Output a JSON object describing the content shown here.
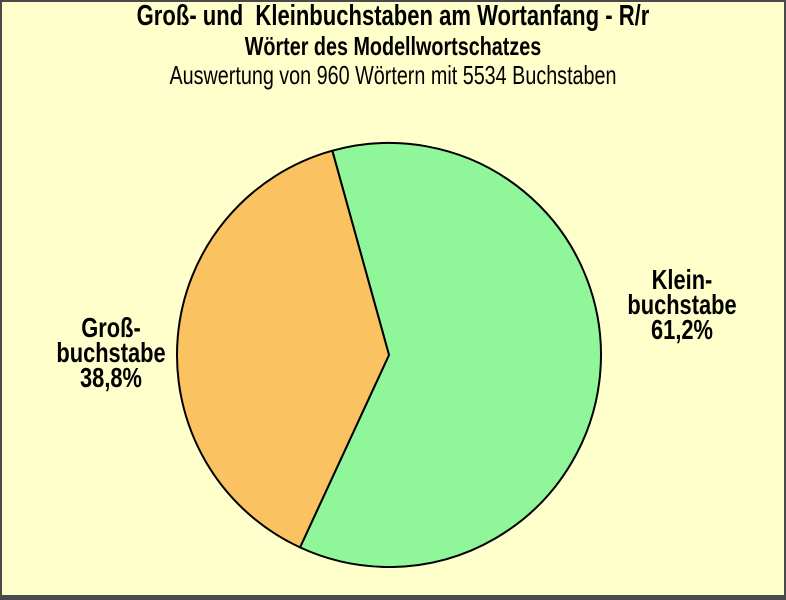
{
  "window": {
    "background": "#FFFFCC",
    "border_color": "#4A4A4A"
  },
  "header": {
    "title": "Groß- und  Kleinbuchstaben am Wortanfang - R/r",
    "subtitle": "Wörter des Modellwortschatzes",
    "annotation": "Auswertung von 960 Wörtern mit 5534 Buchstaben"
  },
  "chart_data": {
    "type": "pie",
    "title": "Groß- und  Kleinbuchstaben am Wortanfang - R/r",
    "subtitle": "Wörter des Modellwortschatzes",
    "annotation": "Auswertung von 960 Wörtern mit 5534 Buchstaben",
    "start_angle_deg": 105.5,
    "direction": "clockwise",
    "outline_color": "#000000",
    "slices": [
      {
        "name": "Kleinbuchstabe",
        "value_pct": 61.2,
        "value_label": "61,2%",
        "color": "#90F69A",
        "label_lines": [
          "Klein-",
          "buchstabe",
          "61,2%"
        ],
        "label_side": "right"
      },
      {
        "name": "Großbuchstabe",
        "value_pct": 38.8,
        "value_label": "38,8%",
        "color": "#FBC261",
        "label_lines": [
          "Groß-",
          "buchstabe",
          "38,8%"
        ],
        "label_side": "left"
      }
    ]
  }
}
